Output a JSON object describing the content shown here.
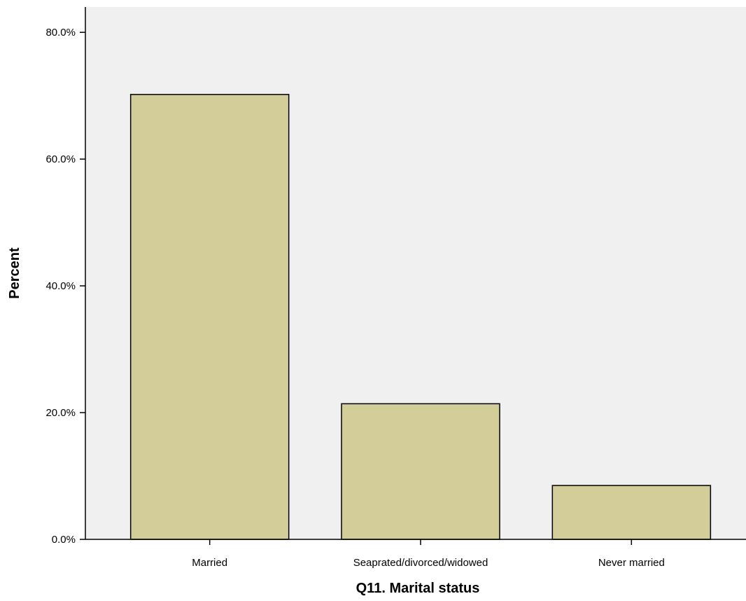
{
  "chart_data": {
    "type": "bar",
    "title": "",
    "xlabel": "Q11. Marital status",
    "ylabel": "Percent",
    "categories": [
      "Married",
      "Seaprated/divorced/widowed",
      "Never married"
    ],
    "values": [
      70.2,
      21.4,
      8.5
    ],
    "ylim": [
      0,
      84
    ],
    "yticks": [
      0,
      20,
      40,
      60,
      80
    ],
    "ytick_labels": [
      "0.0%",
      "20.0%",
      "40.0%",
      "60.0%",
      "80.0%"
    ],
    "grid": false,
    "legend": "none",
    "colors": {
      "bar_fill": "#d3cd99",
      "plot_background": "#f0f0f0",
      "axis": "#000000"
    }
  }
}
